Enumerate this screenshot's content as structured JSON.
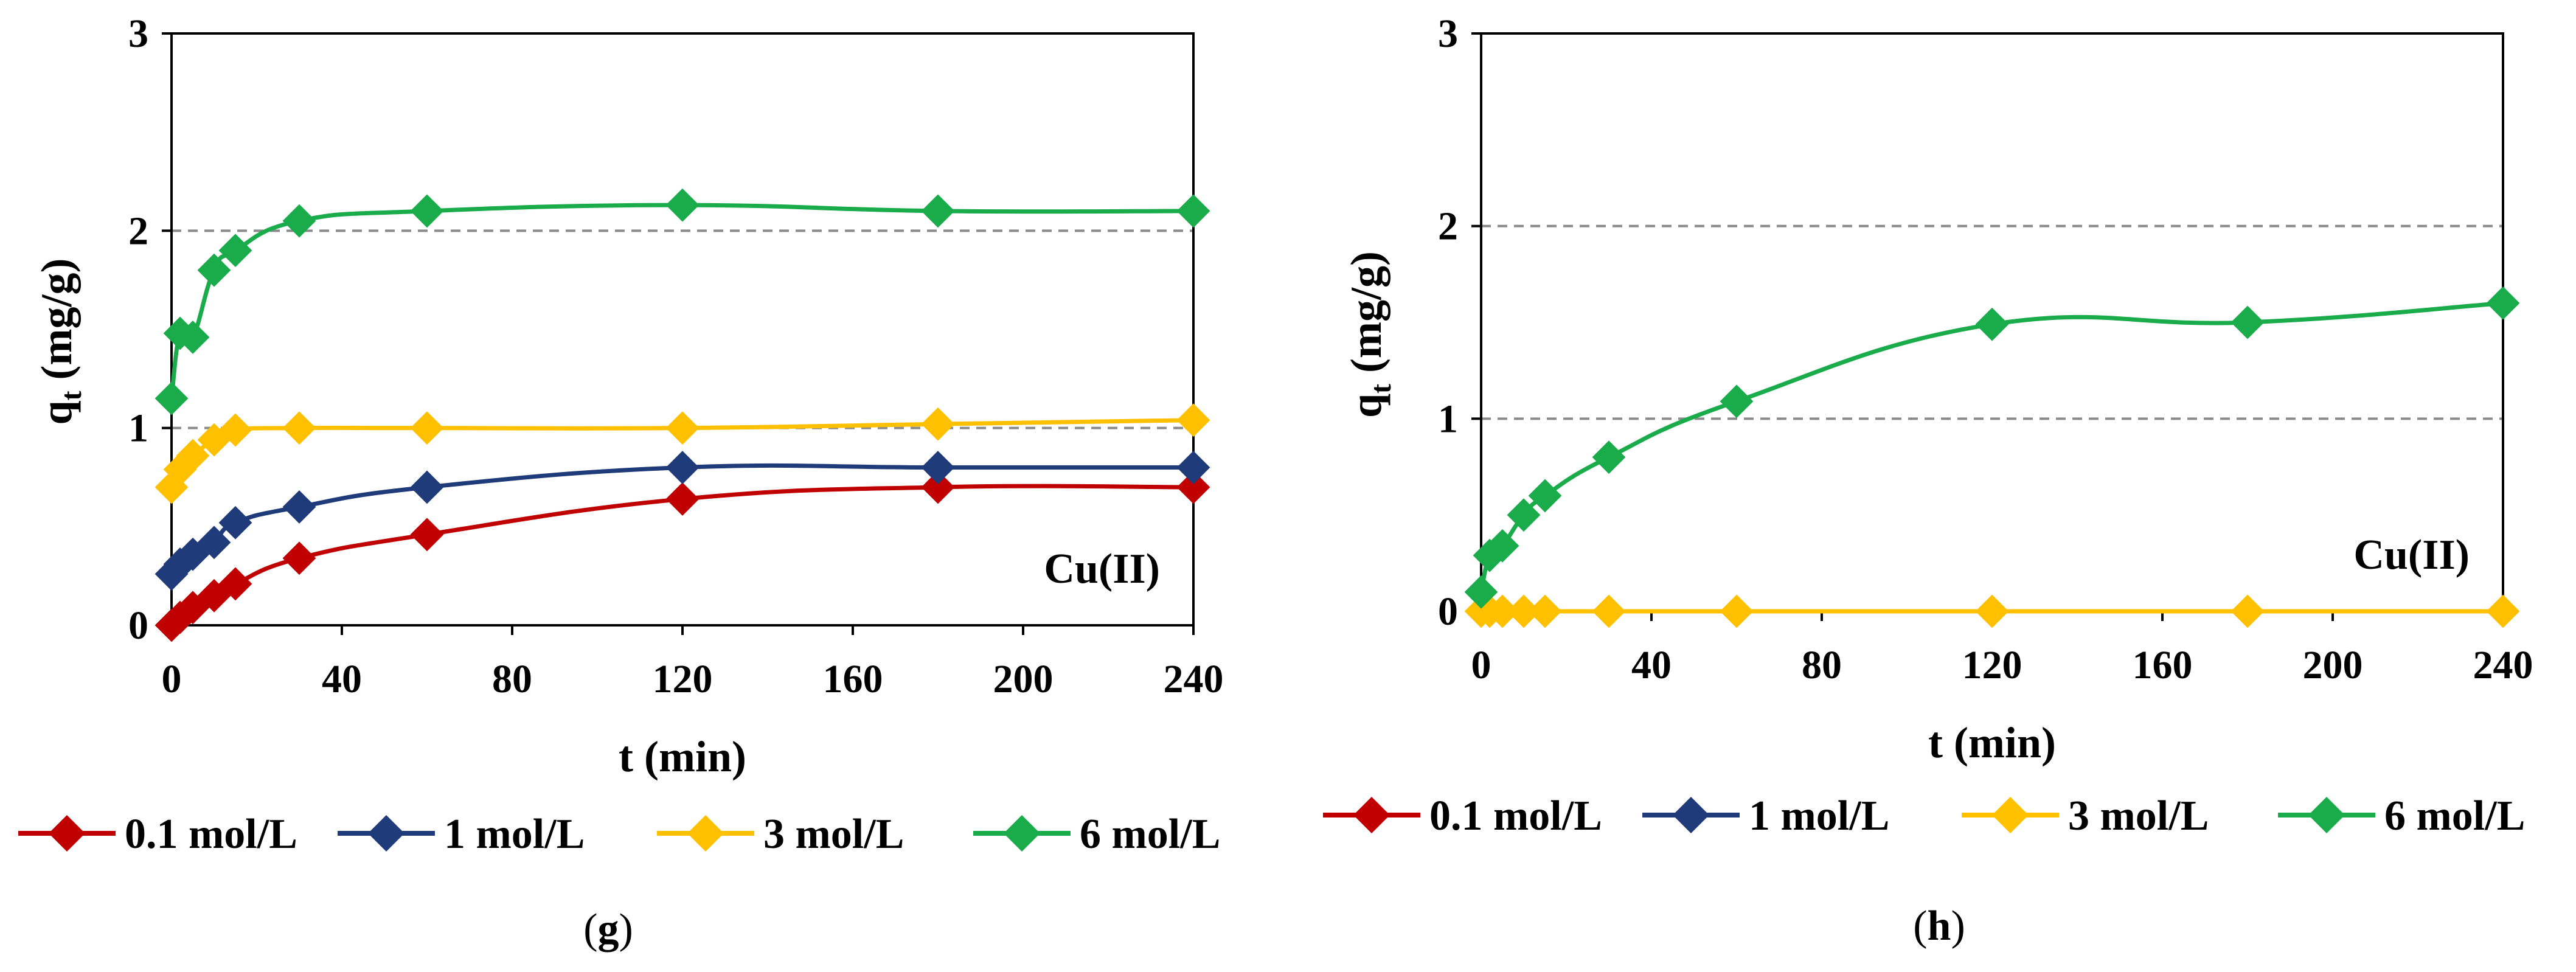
{
  "legend_entries": [
    "0.1 mol/L",
    "1 mol/L",
    "3 mol/L",
    "6 mol/L"
  ],
  "colors": {
    "0.1 mol/L": "#c00000",
    "1 mol/L": "#1f3b7a",
    "3 mol/L": "#ffc000",
    "6 mol/L": "#1aab4b",
    "grid": "#8a8a8a",
    "axis": "#000000"
  },
  "chart_data": [
    {
      "type": "line",
      "panel_label_pre": "(",
      "panel_label": "g",
      "panel_label_post": ")",
      "annotation": "Cu(II)",
      "xlabel": "t (min)",
      "ylabel_main": "q",
      "ylabel_sub": "t",
      "ylabel_rest": " (mg/g)",
      "xlim": [
        0,
        240
      ],
      "ylim": [
        0,
        3
      ],
      "xticks": [
        0,
        40,
        80,
        120,
        160,
        200,
        240
      ],
      "xtick_labels": [
        "0",
        "40",
        "80",
        "120",
        "160",
        "200",
        "240"
      ],
      "yticks": [
        0,
        1,
        2,
        3
      ],
      "ytick_labels": [
        "0",
        "1",
        "2",
        "3"
      ],
      "gridlines_y": [
        1,
        2
      ],
      "legend_position": "bottom",
      "series": [
        {
          "name": "0.1 mol/L",
          "x": [
            0,
            2,
            5,
            10,
            15,
            30,
            60,
            120,
            180,
            240
          ],
          "y": [
            0,
            0.04,
            0.09,
            0.15,
            0.21,
            0.34,
            0.46,
            0.64,
            0.7,
            0.7
          ]
        },
        {
          "name": "1 mol/L",
          "x": [
            0,
            2,
            5,
            10,
            15,
            30,
            60,
            120,
            180,
            240
          ],
          "y": [
            0.26,
            0.31,
            0.36,
            0.42,
            0.52,
            0.6,
            0.7,
            0.8,
            0.8,
            0.8
          ]
        },
        {
          "name": "3 mol/L",
          "x": [
            0,
            2,
            5,
            10,
            15,
            30,
            60,
            120,
            180,
            240
          ],
          "y": [
            0.7,
            0.79,
            0.86,
            0.94,
            0.99,
            1.0,
            1.0,
            1.0,
            1.02,
            1.04
          ]
        },
        {
          "name": "6 mol/L",
          "x": [
            0,
            2,
            5,
            10,
            15,
            30,
            60,
            120,
            180,
            240
          ],
          "y": [
            1.15,
            1.48,
            1.46,
            1.8,
            1.9,
            2.05,
            2.1,
            2.13,
            2.1,
            2.1
          ]
        }
      ]
    },
    {
      "type": "line",
      "panel_label_pre": "(",
      "panel_label": "h",
      "panel_label_post": ")",
      "annotation": "Cu(II)",
      "xlabel": "t (min)",
      "ylabel_main": "q",
      "ylabel_sub": "t",
      "ylabel_rest": " (mg/g)",
      "xlim": [
        0,
        240
      ],
      "ylim": [
        0,
        3
      ],
      "xticks": [
        0,
        40,
        80,
        120,
        160,
        200,
        240
      ],
      "xtick_labels": [
        "0",
        "40",
        "80",
        "120",
        "160",
        "200",
        "240"
      ],
      "yticks": [
        0,
        1,
        2,
        3
      ],
      "ytick_labels": [
        "0",
        "1",
        "2",
        "3"
      ],
      "gridlines_y": [
        1,
        2
      ],
      "legend_position": "bottom",
      "series": [
        {
          "name": "0.1 mol/L",
          "x": [],
          "y": []
        },
        {
          "name": "1 mol/L",
          "x": [],
          "y": []
        },
        {
          "name": "3 mol/L",
          "x": [
            0,
            2,
            5,
            10,
            15,
            30,
            60,
            120,
            180,
            240
          ],
          "y": [
            0,
            0,
            0,
            0,
            0,
            0,
            0,
            0,
            0,
            0
          ]
        },
        {
          "name": "6 mol/L",
          "x": [
            0,
            2,
            5,
            10,
            15,
            30,
            60,
            120,
            180,
            240
          ],
          "y": [
            0.1,
            0.29,
            0.34,
            0.5,
            0.6,
            0.8,
            1.09,
            1.49,
            1.5,
            1.6
          ]
        }
      ]
    }
  ]
}
